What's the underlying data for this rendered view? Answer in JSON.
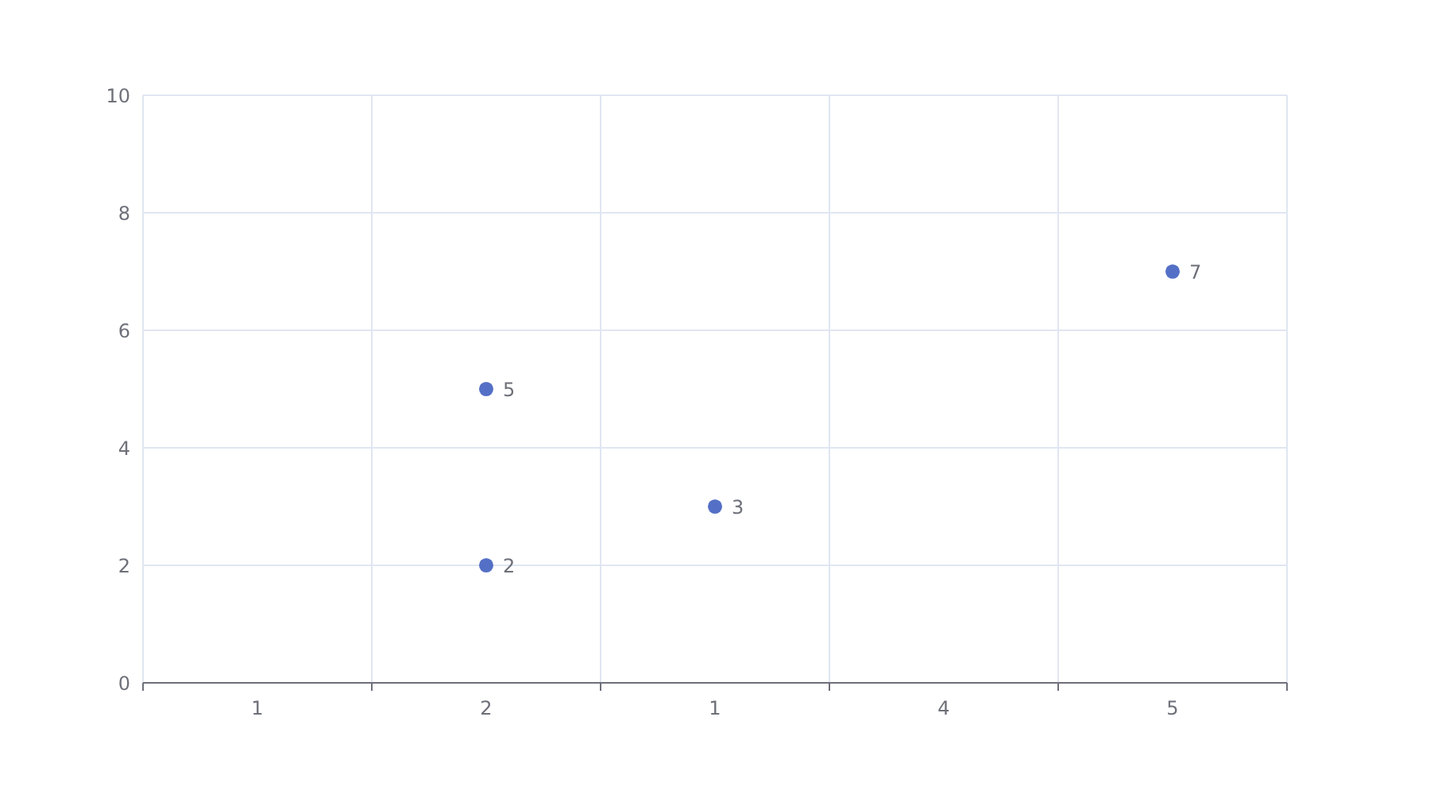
{
  "chart_data": {
    "type": "scatter",
    "categories": [
      "1",
      "2",
      "1",
      "4",
      "5"
    ],
    "series": [
      {
        "color": "#5470c6",
        "values": [
          null,
          5,
          3,
          null,
          7
        ]
      },
      {
        "color": "#5470c6",
        "values": [
          null,
          2,
          null,
          null,
          null
        ]
      }
    ],
    "ylim": [
      0,
      10
    ],
    "yticks": [
      0,
      2,
      4,
      6,
      8,
      10
    ],
    "grid": true,
    "data_labels": true,
    "marker": "circle"
  }
}
